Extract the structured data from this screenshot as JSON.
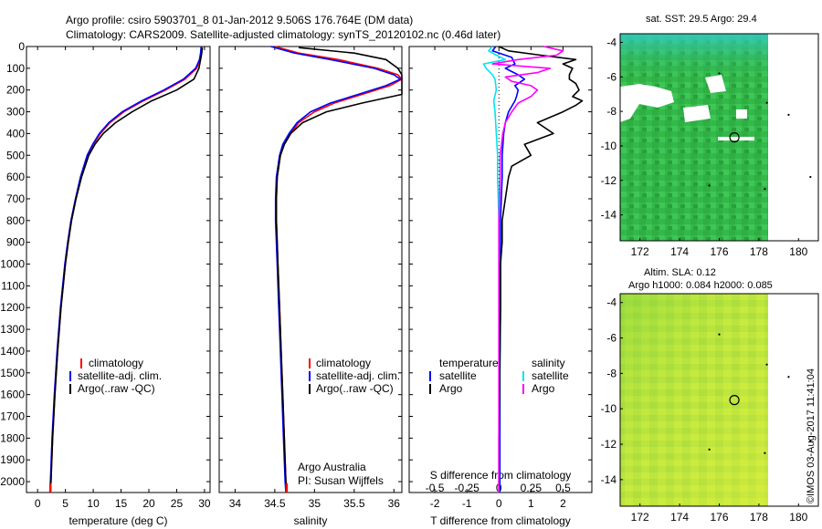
{
  "header": {
    "title_line1": "Argo profile: csiro 5903701_8 01-Jan-2012 9.506S 176.764E (DM data)",
    "title_line2": "Climatology: CARS2009. Satellite-adjusted climatology: synTS_20120102.nc (0.46d later)"
  },
  "legend": {
    "climatology": "climatology",
    "satellite_adj": "satellite-adj. clim.",
    "argo": "Argo(..raw -QC)",
    "temperature_head": "temperature",
    "salinity_head": "salinity",
    "satellite": "satellite",
    "argo_short": "Argo"
  },
  "credits": {
    "org": "Argo Australia",
    "pi": "PI: Susan Wijffels",
    "stamp": "©IMOS 03-Aug-2017 11:41:04"
  },
  "colors": {
    "climatology": "#ff0000",
    "satellite": "#0000ff",
    "argo": "#000000",
    "sal_satellite": "#00e5ee",
    "sal_argo": "#ff00ff",
    "sst_water": "#33bb44",
    "sla_water": "#b8e040"
  },
  "chart_data": [
    {
      "type": "line",
      "title": "",
      "xlabel": "temperature (deg C)",
      "ylabel": "",
      "xlim": [
        -2,
        31
      ],
      "ylim": [
        2050,
        0
      ],
      "xticks": [
        0,
        5,
        10,
        15,
        20,
        25,
        30
      ],
      "depth_ticks": [
        0,
        100,
        200,
        300,
        400,
        500,
        600,
        700,
        800,
        900,
        1000,
        1100,
        1200,
        1300,
        1400,
        1500,
        1600,
        1700,
        1800,
        1900,
        2000
      ],
      "series": [
        {
          "name": "climatology",
          "depth": [
            0,
            30,
            60,
            100,
            150,
            200,
            250,
            300,
            350,
            400,
            450,
            500,
            600,
            700,
            800,
            900,
            1000,
            1200,
            1400,
            1600,
            1800,
            2000,
            2050
          ],
          "values": [
            29.5,
            29.4,
            29.2,
            28.6,
            26.5,
            23.0,
            19.0,
            15.5,
            13.0,
            11.3,
            10.0,
            9.0,
            7.8,
            6.9,
            6.1,
            5.5,
            5.0,
            4.2,
            3.6,
            3.1,
            2.7,
            2.4,
            2.3
          ]
        },
        {
          "name": "satellite-adj. clim.",
          "depth": [
            0,
            30,
            60,
            100,
            150,
            200,
            250,
            300,
            350,
            400,
            450,
            500,
            600,
            700,
            800,
            900,
            1000,
            1200,
            1400,
            1600,
            1800,
            2000,
            2050
          ],
          "values": [
            29.4,
            29.3,
            29.1,
            28.4,
            26.2,
            22.7,
            18.7,
            15.2,
            12.8,
            11.1,
            9.9,
            8.9,
            7.7,
            6.8,
            6.0,
            5.4,
            4.9,
            4.1,
            3.5,
            3.0,
            2.6,
            2.3,
            2.2
          ]
        },
        {
          "name": "Argo(..raw -QC)",
          "depth": [
            5,
            30,
            60,
            100,
            150,
            200,
            250,
            300,
            350,
            400,
            450,
            500,
            600,
            700,
            800,
            900,
            1000,
            1200,
            1400,
            1600,
            1800,
            2000,
            2045
          ],
          "values": [
            29.6,
            29.5,
            29.3,
            29.0,
            28.1,
            25.0,
            20.5,
            17.0,
            14.0,
            11.8,
            10.3,
            9.2,
            7.9,
            6.9,
            6.1,
            5.5,
            5.0,
            4.2,
            3.6,
            3.1,
            2.7,
            2.4,
            2.3
          ]
        }
      ]
    },
    {
      "type": "line",
      "title": "",
      "xlabel": "salinity",
      "ylabel": "",
      "xlim": [
        33.8,
        36.1
      ],
      "ylim": [
        2050,
        0
      ],
      "xticks": [
        34,
        34.5,
        35,
        35.5,
        36
      ],
      "series": [
        {
          "name": "climatology",
          "depth": [
            0,
            30,
            60,
            100,
            130,
            150,
            180,
            220,
            260,
            300,
            350,
            400,
            450,
            500,
            600,
            700,
            800,
            900,
            1000,
            1200,
            1400,
            1600,
            1800,
            2000,
            2050
          ],
          "values": [
            34.5,
            34.8,
            35.3,
            35.8,
            36.05,
            36.1,
            35.95,
            35.6,
            35.25,
            35.0,
            34.8,
            34.7,
            34.62,
            34.57,
            34.53,
            34.52,
            34.52,
            34.53,
            34.54,
            34.56,
            34.58,
            34.6,
            34.62,
            34.64,
            34.65
          ]
        },
        {
          "name": "satellite-adj. clim.",
          "depth": [
            0,
            30,
            60,
            100,
            130,
            150,
            180,
            220,
            260,
            300,
            350,
            400,
            450,
            500,
            600,
            700,
            800,
            900,
            1000,
            1200,
            1400,
            1600,
            1800,
            2000,
            2050
          ],
          "values": [
            34.45,
            34.75,
            35.2,
            35.75,
            36.0,
            36.08,
            35.9,
            35.55,
            35.2,
            34.95,
            34.78,
            34.68,
            34.6,
            34.56,
            34.52,
            34.51,
            34.51,
            34.52,
            34.53,
            34.55,
            34.57,
            34.59,
            34.61,
            34.63,
            34.64
          ]
        },
        {
          "name": "Argo(..raw -QC)",
          "depth": [
            5,
            30,
            60,
            100,
            130,
            150,
            180,
            220,
            260,
            300,
            350,
            400,
            450,
            500,
            600,
            700,
            800,
            900,
            1000,
            1200,
            1400,
            1600,
            1800,
            2000,
            2045
          ],
          "values": [
            34.8,
            35.5,
            35.9,
            36.05,
            36.1,
            36.1,
            36.1,
            36.1,
            35.6,
            35.15,
            34.85,
            34.7,
            34.62,
            34.57,
            34.53,
            34.52,
            34.52,
            34.53,
            34.54,
            34.56,
            34.58,
            34.6,
            34.62,
            34.64,
            34.65
          ]
        }
      ]
    },
    {
      "type": "line",
      "title": "S difference from climatology",
      "xlabel": "T difference from climatology",
      "ylabel": "",
      "xlim": [
        -2.8,
        2.9
      ],
      "ylim": [
        2050,
        0
      ],
      "xticks": [
        -2,
        -1,
        0,
        1,
        2
      ],
      "top_ticks": [
        -0.5,
        -0.25,
        0,
        0.25,
        0.5
      ],
      "series": [
        {
          "name": "temperature satellite",
          "depth": [
            0,
            20,
            50,
            80,
            100,
            130,
            150,
            180,
            200,
            230,
            250,
            300,
            350,
            400,
            500,
            600,
            800,
            1000,
            1200,
            1500,
            1800,
            2000,
            2050
          ],
          "values": [
            -0.1,
            -0.2,
            0.4,
            0.5,
            0.2,
            0.6,
            0.8,
            0.5,
            0.6,
            0.55,
            0.5,
            0.3,
            0.2,
            0.15,
            0.1,
            0.1,
            0.05,
            0.05,
            0.05,
            0.03,
            0.03,
            0.03,
            0.03
          ]
        },
        {
          "name": "temperature Argo",
          "depth": [
            0,
            20,
            40,
            60,
            80,
            100,
            130,
            150,
            170,
            200,
            230,
            250,
            270,
            300,
            350,
            400,
            450,
            500,
            550,
            600,
            700,
            800,
            900,
            1000,
            1200,
            1400,
            1600,
            1800,
            2000,
            2050
          ],
          "values": [
            0.0,
            0.3,
            1.3,
            2.4,
            2.0,
            2.3,
            2.2,
            2.2,
            2.4,
            2.5,
            2.3,
            2.6,
            2.4,
            2.0,
            1.2,
            1.7,
            0.8,
            1.0,
            0.4,
            0.3,
            0.2,
            0.1,
            0.1,
            0.05,
            0.05,
            0.03,
            0.02,
            0.0,
            0.0,
            0.0
          ]
        },
        {
          "name": "salinity satellite",
          "depth": [
            0,
            20,
            40,
            60,
            80,
            100,
            130,
            150,
            200,
            250,
            300,
            400,
            500,
            600,
            800,
            1000,
            1200,
            1500,
            1800,
            2000,
            2050
          ],
          "values": [
            -0.05,
            -0.08,
            -0.02,
            0.05,
            -0.12,
            -0.1,
            -0.05,
            -0.03,
            -0.02,
            -0.04,
            -0.03,
            -0.02,
            -0.01,
            -0.01,
            0.0,
            0.0,
            0.0,
            0.0,
            0.0,
            0.0,
            0.0
          ]
        },
        {
          "name": "salinity Argo",
          "depth": [
            0,
            20,
            40,
            60,
            80,
            100,
            120,
            140,
            160,
            180,
            200,
            230,
            260,
            300,
            350,
            400,
            450,
            500,
            600,
            800,
            1000,
            1200,
            1500,
            1800,
            2000,
            2050
          ],
          "values": [
            0.35,
            0.5,
            0.45,
            0.15,
            -0.05,
            0.4,
            0.3,
            0.05,
            0.1,
            0.25,
            0.3,
            0.25,
            0.15,
            0.1,
            0.05,
            0.03,
            0.02,
            0.01,
            0.01,
            0.0,
            0.0,
            0.0,
            0.0,
            0.0,
            0.0,
            0.0
          ]
        }
      ]
    },
    {
      "type": "heatmap",
      "title": "sat. SST: 29.5 Argo: 29.4",
      "xticks": [
        172,
        174,
        176,
        178,
        180
      ],
      "yticks": [
        -4,
        -6,
        -8,
        -10,
        -12,
        -14
      ],
      "xlim": [
        171,
        181
      ],
      "ylim": [
        -15.5,
        -3.5
      ],
      "float_position": [
        176.764,
        -9.506
      ]
    },
    {
      "type": "heatmap",
      "title": "Altim. SLA: 0.12",
      "subtitle": "Argo h1000: 0.084 h2000: 0.085",
      "xticks": [
        172,
        174,
        176,
        178,
        180
      ],
      "yticks": [
        -4,
        -6,
        -8,
        -10,
        -12,
        -14
      ],
      "xlim": [
        171,
        181
      ],
      "ylim": [
        -15.5,
        -3.5
      ],
      "float_position": [
        176.764,
        -9.506
      ]
    }
  ]
}
